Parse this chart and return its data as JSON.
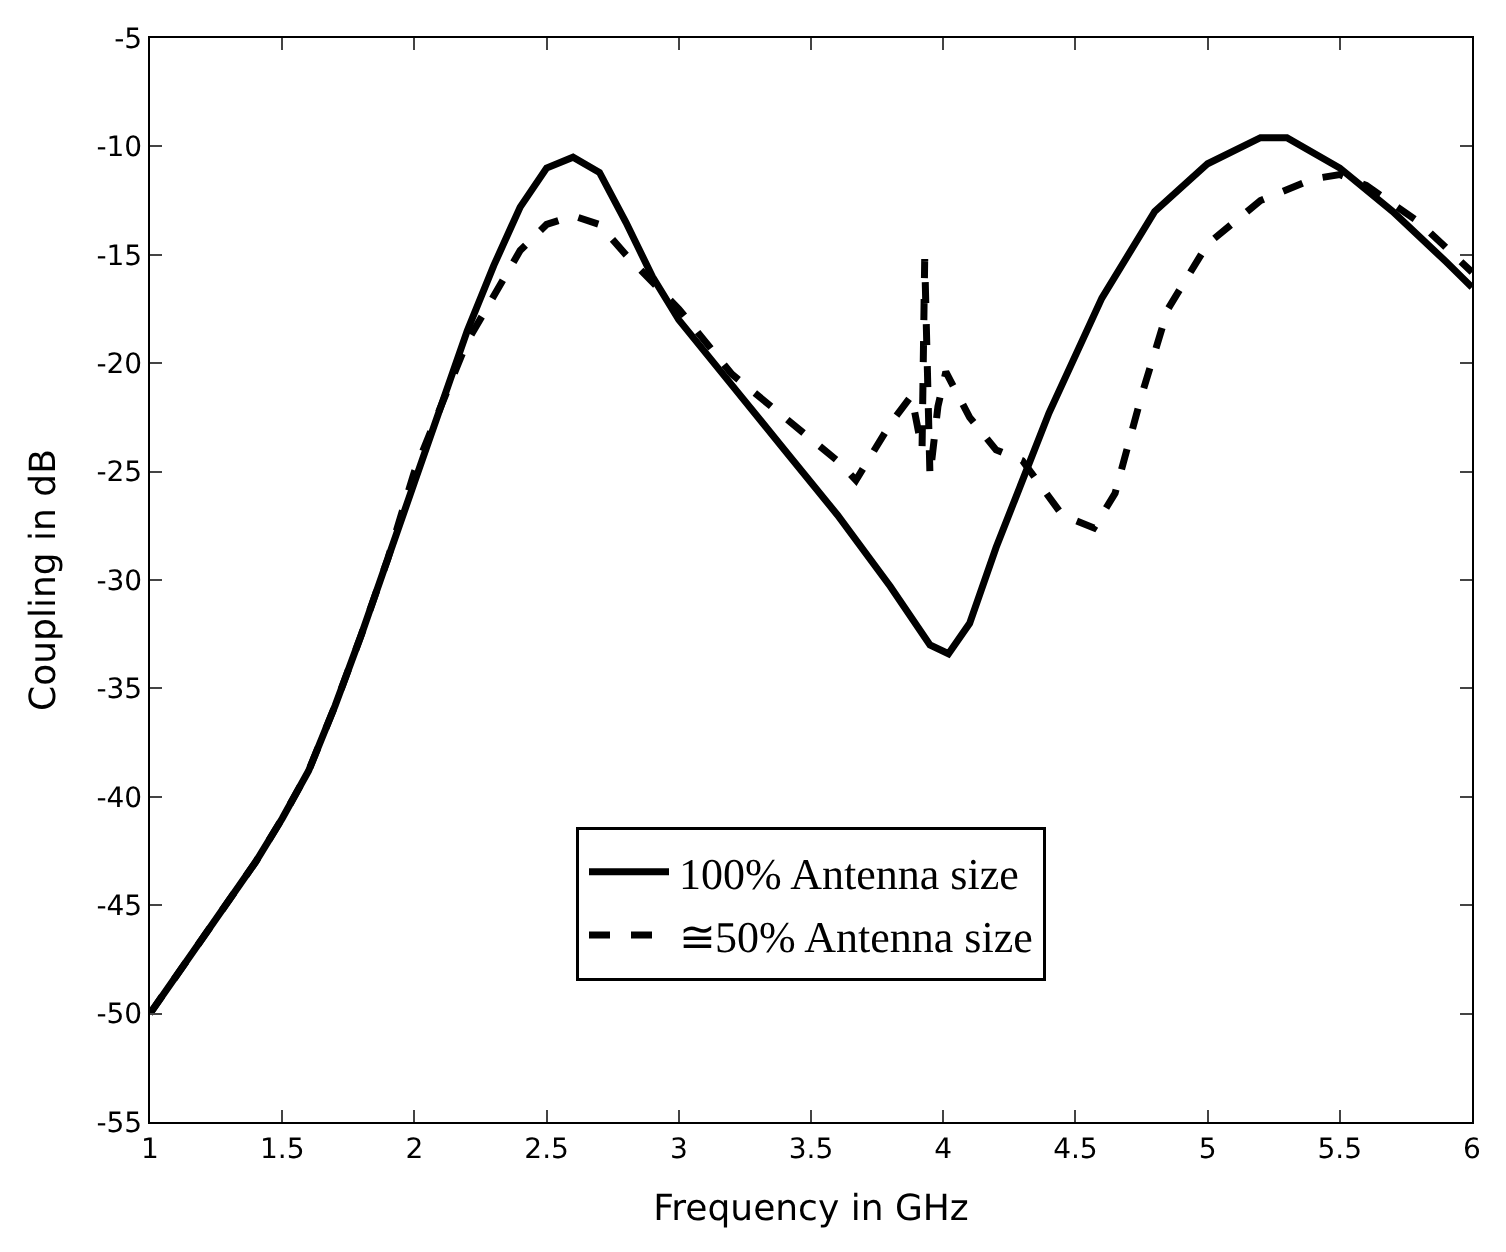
{
  "chart_data": {
    "type": "line",
    "xlabel": "Frequency in GHz",
    "ylabel": "Coupling in dB",
    "xlim": [
      1,
      6
    ],
    "xticks": [
      1,
      1.5,
      2,
      2.5,
      3,
      3.5,
      4,
      4.5,
      5,
      5.5,
      6
    ],
    "ylim": [
      -55,
      -5
    ],
    "yticks": [
      -55,
      -50,
      -45,
      -40,
      -35,
      -30,
      -25,
      -20,
      -15,
      -10,
      -5
    ],
    "legend": "bottom",
    "marker": "none",
    "series": [
      {
        "name": "100% Antenna size",
        "color": "#000000",
        "line_style": "solid",
        "x": [
          1,
          1.2,
          1.4,
          1.5,
          1.6,
          1.7,
          1.8,
          1.9,
          2,
          2.1,
          2.2,
          2.3,
          2.4,
          2.5,
          2.6,
          2.7,
          2.8,
          2.9,
          3,
          3.2,
          3.4,
          3.6,
          3.8,
          3.95,
          4.02,
          4.1,
          4.2,
          4.4,
          4.6,
          4.8,
          5,
          5.2,
          5.3,
          5.5,
          5.7,
          5.9,
          6
        ],
        "values": [
          -50,
          -46.5,
          -43,
          -41,
          -38.8,
          -35.8,
          -32.5,
          -29,
          -25.5,
          -22,
          -18.5,
          -15.5,
          -12.8,
          -11,
          -10.5,
          -11.2,
          -13.5,
          -16,
          -18,
          -21,
          -24,
          -27,
          -30.3,
          -33,
          -33.4,
          -32,
          -28.5,
          -22.3,
          -17,
          -13,
          -10.8,
          -9.6,
          -9.6,
          -11,
          -13,
          -15.3,
          -16.5
        ]
      },
      {
        "name": "≅50% Antenna size",
        "color": "#000000",
        "line_style": "dashed",
        "x": [
          1,
          1.2,
          1.4,
          1.5,
          1.6,
          1.7,
          1.8,
          1.9,
          2,
          2.2,
          2.4,
          2.5,
          2.6,
          2.7,
          2.8,
          3,
          3.2,
          3.4,
          3.6,
          3.67,
          3.8,
          3.88,
          3.92,
          3.93,
          3.95,
          3.98,
          4.01,
          4.1,
          4.2,
          4.3,
          4.45,
          4.57,
          4.65,
          4.75,
          4.85,
          5,
          5.2,
          5.4,
          5.5,
          5.6,
          5.8,
          6
        ],
        "values": [
          -50,
          -46.5,
          -43,
          -41,
          -38.8,
          -35.8,
          -32.5,
          -29,
          -25,
          -19,
          -14.8,
          -13.6,
          -13.2,
          -13.6,
          -15,
          -17.5,
          -20.5,
          -22.5,
          -24.5,
          -25.4,
          -22.8,
          -21.5,
          -24,
          -15.2,
          -25.2,
          -22,
          -20.4,
          -22.5,
          -24,
          -24.5,
          -27,
          -27.6,
          -26,
          -21.5,
          -17.5,
          -14.5,
          -12.5,
          -11.5,
          -11.3,
          -11.8,
          -13.5,
          -15.8
        ]
      }
    ]
  }
}
